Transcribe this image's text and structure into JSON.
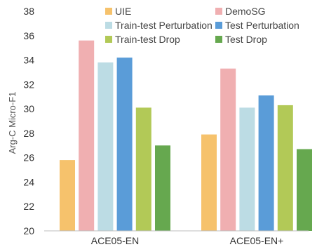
{
  "chart_data": {
    "type": "bar",
    "title": "",
    "xlabel": "",
    "ylabel": "Arg-C Micro-F1",
    "ylim": [
      20,
      38
    ],
    "yticks": [
      20,
      22,
      24,
      26,
      28,
      30,
      32,
      34,
      36,
      38
    ],
    "categories": [
      "ACE05-EN",
      "ACE05-EN+"
    ],
    "series": [
      {
        "name": "UIE",
        "color": "#F6C26C",
        "values": [
          25.8,
          27.9
        ]
      },
      {
        "name": "DemoSG",
        "color": "#F0AFB1",
        "values": [
          35.6,
          33.3
        ]
      },
      {
        "name": "Train-test Perturbation",
        "color": "#BCDCE4",
        "values": [
          33.8,
          30.1
        ]
      },
      {
        "name": "Test Perturbation",
        "color": "#5A9CD8",
        "values": [
          34.2,
          31.1
        ]
      },
      {
        "name": "Train-test Drop",
        "color": "#B2C957",
        "values": [
          30.1,
          30.3
        ]
      },
      {
        "name": "Test Drop",
        "color": "#66A84F",
        "values": [
          27.0,
          26.7
        ]
      }
    ],
    "grid": false,
    "legend_position": "top"
  }
}
